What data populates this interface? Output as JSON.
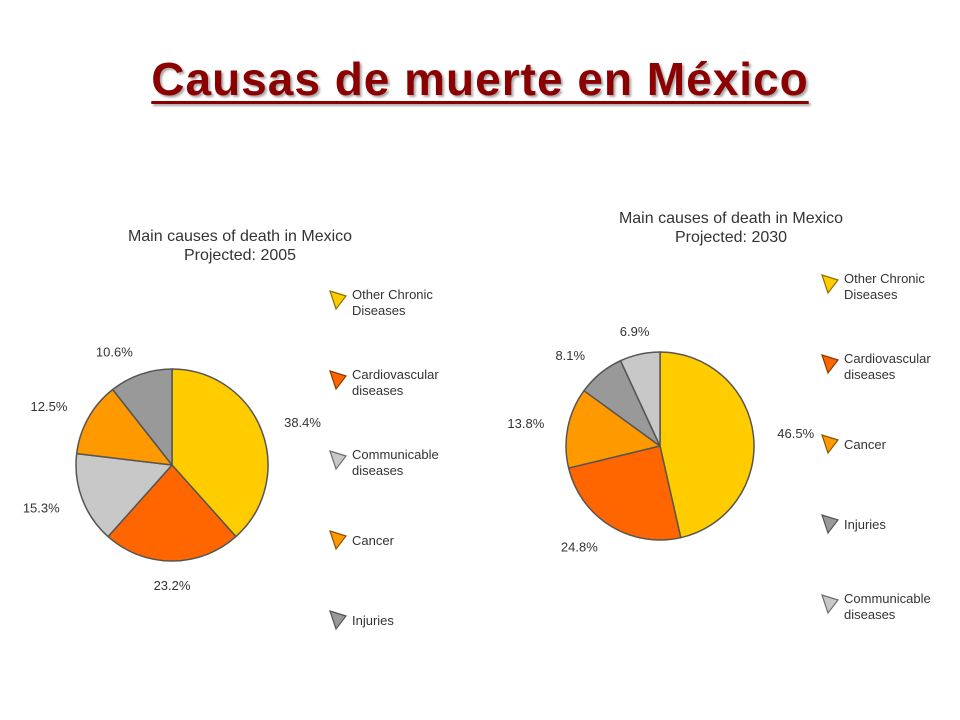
{
  "slide": {
    "title": "Causas de muerte en México"
  },
  "chart_data": [
    {
      "type": "pie",
      "title": "Main causes of death in Mexico",
      "subtitle": "Projected: 2005",
      "slices": [
        {
          "label": "Other Chronic Diseases",
          "value": 38.4,
          "value_label": "38.4%",
          "color": "#ffcc00"
        },
        {
          "label": "Cardiovascular diseases",
          "value": 23.2,
          "value_label": "23.2%",
          "color": "#ff6600"
        },
        {
          "label": "Communicable diseases",
          "value": 15.3,
          "value_label": "15.3%",
          "color": "#c8c8c8"
        },
        {
          "label": "Cancer",
          "value": 12.5,
          "value_label": "12.5%",
          "color": "#ff9900"
        },
        {
          "label": "Injuries",
          "value": 10.6,
          "value_label": "10.6%",
          "color": "#999999"
        }
      ],
      "legend": [
        {
          "line1": "Other Chronic",
          "line2": "Diseases",
          "color": "#ffcc00"
        },
        {
          "line1": "Cardiovascular",
          "line2": "diseases",
          "color": "#ff6600"
        },
        {
          "line1": "Communicable",
          "line2": "diseases",
          "color": "#c8c8c8"
        },
        {
          "line1": "Cancer",
          "line2": "",
          "color": "#ff9900"
        },
        {
          "line1": "Injuries",
          "line2": "",
          "color": "#999999"
        }
      ],
      "legend_position": "right"
    },
    {
      "type": "pie",
      "title": "Main causes of death in Mexico",
      "subtitle": "Projected: 2030",
      "slices": [
        {
          "label": "Other Chronic Diseases",
          "value": 46.5,
          "value_label": "46.5%",
          "color": "#ffcc00"
        },
        {
          "label": "Cardiovascular diseases",
          "value": 24.8,
          "value_label": "24.8%",
          "color": "#ff6600"
        },
        {
          "label": "Cancer",
          "value": 13.8,
          "value_label": "13.8%",
          "color": "#ff9900"
        },
        {
          "label": "Injuries",
          "value": 8.1,
          "value_label": "8.1%",
          "color": "#999999"
        },
        {
          "label": "Communicable diseases",
          "value": 6.9,
          "value_label": "6.9%",
          "color": "#c8c8c8"
        }
      ],
      "legend": [
        {
          "line1": "Other Chronic",
          "line2": "Diseases",
          "color": "#ffcc00"
        },
        {
          "line1": "Cardiovascular",
          "line2": "diseases",
          "color": "#ff6600"
        },
        {
          "line1": "Cancer",
          "line2": "",
          "color": "#ff9900"
        },
        {
          "line1": "Injuries",
          "line2": "",
          "color": "#999999"
        },
        {
          "line1": "Communicable",
          "line2": "diseases",
          "color": "#c8c8c8"
        }
      ],
      "legend_position": "right"
    }
  ]
}
